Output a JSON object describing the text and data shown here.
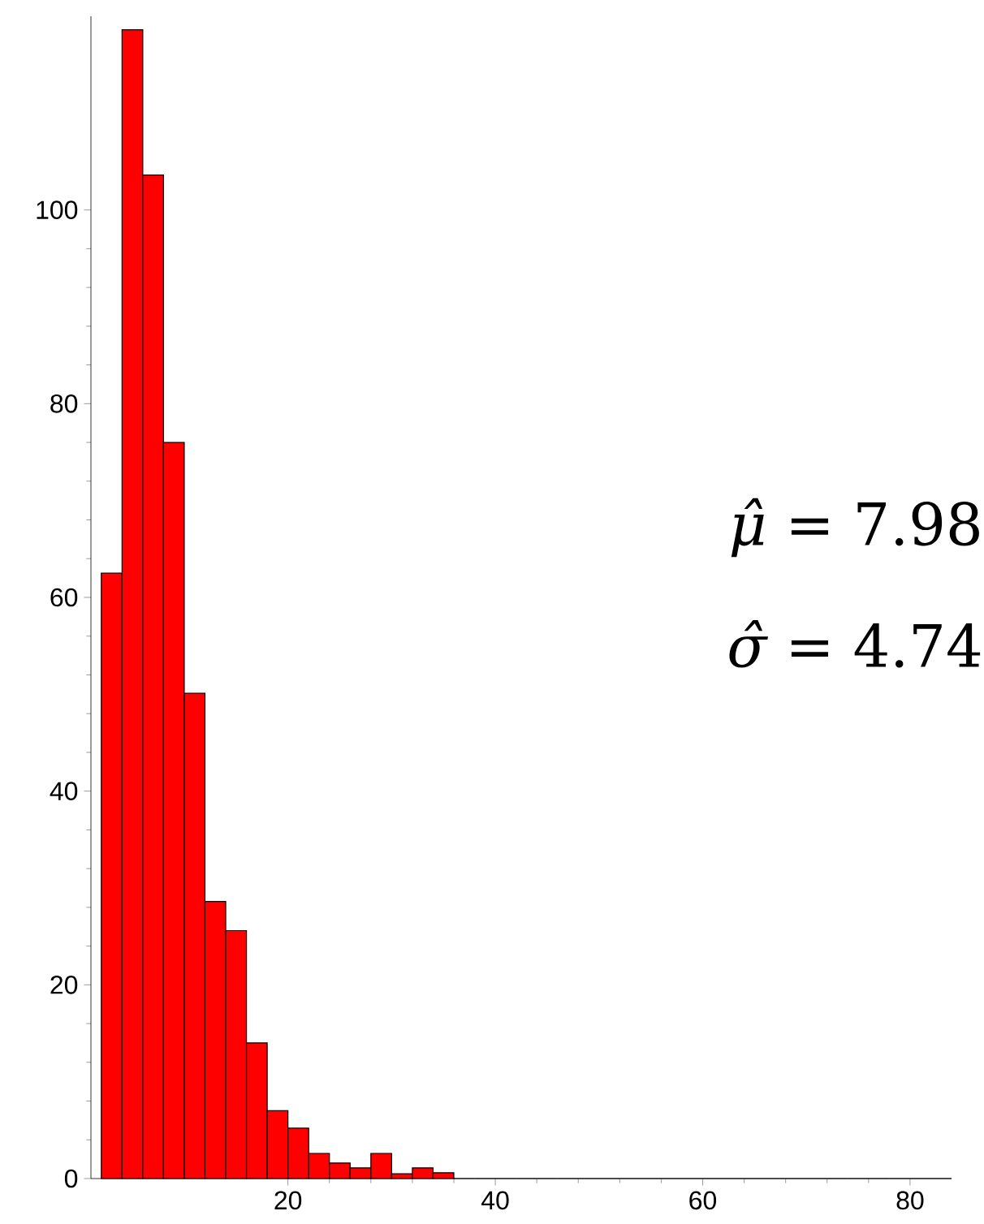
{
  "chart_data": {
    "type": "histogram",
    "bins": [
      2,
      4,
      6,
      8,
      10,
      12,
      14,
      16,
      18,
      20,
      22,
      24,
      26,
      28,
      30,
      32,
      34,
      36,
      38,
      40,
      42,
      44,
      46,
      48,
      50,
      52,
      54,
      56,
      58,
      60,
      62,
      64,
      66,
      68,
      70,
      72,
      74,
      76,
      78,
      80,
      82,
      84
    ],
    "values": [
      62.5,
      118.6,
      103.6,
      76,
      50.1,
      28.6,
      25.6,
      14,
      7,
      5.2,
      2.6,
      1.6,
      1.1,
      2.6,
      0.5,
      1.1,
      0.6,
      0,
      0,
      0,
      0,
      0,
      0,
      0,
      0,
      0,
      0,
      0,
      0,
      0,
      0,
      0,
      0,
      0,
      0,
      0,
      0,
      0,
      0,
      0,
      0
    ],
    "color": "#ff0000",
    "xlim": [
      1,
      84
    ],
    "xticks": [
      20,
      40,
      60,
      80
    ],
    "ylim": [
      0,
      120
    ],
    "yticks": [
      0,
      20,
      40,
      60,
      80,
      100
    ],
    "annotations": [
      "*μ̂* = 7.98",
      "*σ̂* = 4.74"
    ]
  }
}
